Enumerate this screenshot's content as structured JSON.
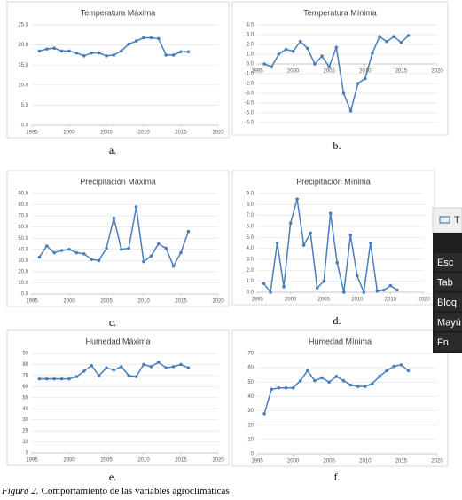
{
  "chart_data": [
    {
      "type": "line",
      "title": "Temperatura Máxima",
      "panel_label": "a.",
      "color": "#4a7ebb",
      "grid": true,
      "x": [
        1996,
        1997,
        1998,
        1999,
        2000,
        2001,
        2002,
        2003,
        2004,
        2005,
        2006,
        2007,
        2008,
        2009,
        2010,
        2011,
        2012,
        2013,
        2014,
        2015,
        2016
      ],
      "values": [
        18.5,
        19,
        19.2,
        18.5,
        18.5,
        18,
        17.3,
        18,
        18,
        17.3,
        17.5,
        18.5,
        20.2,
        21,
        21.8,
        21.8,
        21.6,
        17.5,
        17.5,
        18.3,
        18.3
      ],
      "xlim": [
        1995,
        2020
      ],
      "xticks": [
        1995,
        2000,
        2005,
        2010,
        2015,
        2020
      ],
      "ylim": [
        0,
        25
      ],
      "yticks": [
        {
          "value": 0,
          "label": "0.0"
        },
        {
          "value": 5,
          "label": "5.0"
        },
        {
          "value": 10,
          "label": "10.0"
        },
        {
          "value": 15,
          "label": "15.0"
        },
        {
          "value": 20,
          "label": "20.0"
        },
        {
          "value": 25,
          "label": "25.0"
        }
      ]
    },
    {
      "type": "line",
      "title": "Temperatura Mínima",
      "panel_label": "b.",
      "color": "#4a7ebb",
      "grid": true,
      "x": [
        1996,
        1997,
        1998,
        1999,
        2000,
        2001,
        2002,
        2003,
        2004,
        2005,
        2006,
        2007,
        2008,
        2009,
        2010,
        2011,
        2012,
        2013,
        2014,
        2015,
        2016
      ],
      "values": [
        0,
        -0.3,
        1.0,
        1.5,
        1.3,
        2.3,
        1.6,
        0,
        0.8,
        -0.3,
        1.7,
        -3.0,
        -4.8,
        -2.0,
        -1.5,
        1.1,
        2.8,
        2.3,
        2.8,
        2.2,
        2.9
      ],
      "xlim": [
        1995,
        2020
      ],
      "xticks": [
        1995,
        2000,
        2005,
        2010,
        2015,
        2020
      ],
      "ylim": [
        -6,
        4
      ],
      "yticks": [
        {
          "value": -6,
          "label": "-6.0"
        },
        {
          "value": -5,
          "label": "-5.0"
        },
        {
          "value": -4,
          "label": "-4.0"
        },
        {
          "value": -3,
          "label": "-3.0"
        },
        {
          "value": -2,
          "label": "-2.0"
        },
        {
          "value": -1,
          "label": "-1.0"
        },
        {
          "value": 0,
          "label": "0.0"
        },
        {
          "value": 1,
          "label": "1.0"
        },
        {
          "value": 2,
          "label": "2.0"
        },
        {
          "value": 3,
          "label": "3.0"
        },
        {
          "value": 4,
          "label": "4.0"
        }
      ]
    },
    {
      "type": "line",
      "title": "Precipitación Máxima",
      "panel_label": "c.",
      "color": "#4a7ebb",
      "grid": true,
      "x": [
        1996,
        1997,
        1998,
        1999,
        2000,
        2001,
        2002,
        2003,
        2004,
        2005,
        2006,
        2007,
        2008,
        2009,
        2010,
        2011,
        2012,
        2013,
        2014,
        2015,
        2016
      ],
      "values": [
        33,
        43,
        37,
        39,
        40,
        37,
        36,
        31,
        30,
        41,
        68,
        40,
        41,
        78,
        29,
        34,
        45,
        41,
        25,
        37,
        56
      ],
      "xlim": [
        1995,
        2020
      ],
      "xticks": [
        1995,
        2000,
        2005,
        2010,
        2015,
        2020
      ],
      "ylim": [
        0,
        90
      ],
      "yticks": [
        {
          "value": 0,
          "label": "0.0"
        },
        {
          "value": 10,
          "label": "10.0"
        },
        {
          "value": 20,
          "label": "20.0"
        },
        {
          "value": 30,
          "label": "30.0"
        },
        {
          "value": 40,
          "label": "40.0"
        },
        {
          "value": 50,
          "label": "50.0"
        },
        {
          "value": 60,
          "label": "60.0"
        },
        {
          "value": 70,
          "label": "70.0"
        },
        {
          "value": 80,
          "label": "80.0"
        },
        {
          "value": 90,
          "label": "90.0"
        }
      ]
    },
    {
      "type": "line",
      "title": "Precipitación Mínima",
      "panel_label": "d.",
      "color": "#4a7ebb",
      "grid": true,
      "x": [
        1996,
        1997,
        1998,
        1999,
        2000,
        2001,
        2002,
        2003,
        2004,
        2005,
        2006,
        2007,
        2008,
        2009,
        2010,
        2011,
        2012,
        2013,
        2014,
        2015,
        2016
      ],
      "values": [
        0.8,
        0,
        4.5,
        0.5,
        6.3,
        8.5,
        4.3,
        5.4,
        0.4,
        1.0,
        7.2,
        2.7,
        0,
        5.2,
        1.5,
        0,
        4.5,
        0.1,
        0.2,
        0.6,
        0.2
      ],
      "xlim": [
        1995,
        2020
      ],
      "xticks": [
        1995,
        2000,
        2005,
        2010,
        2015,
        2020
      ],
      "ylim": [
        0,
        9
      ],
      "yticks": [
        {
          "value": 0,
          "label": "0.0"
        },
        {
          "value": 1,
          "label": "1.0"
        },
        {
          "value": 2,
          "label": "2.0"
        },
        {
          "value": 3,
          "label": "3.0"
        },
        {
          "value": 4,
          "label": "4.0"
        },
        {
          "value": 5,
          "label": "5.0"
        },
        {
          "value": 6,
          "label": "6.0"
        },
        {
          "value": 7,
          "label": "7.0"
        },
        {
          "value": 8,
          "label": "8.0"
        },
        {
          "value": 9,
          "label": "9.0"
        }
      ]
    },
    {
      "type": "line",
      "title": "Humedad Máxima",
      "panel_label": "e.",
      "color": "#4a7ebb",
      "grid": true,
      "x": [
        1996,
        1997,
        1998,
        1999,
        2000,
        2001,
        2002,
        2003,
        2004,
        2005,
        2006,
        2007,
        2008,
        2009,
        2010,
        2011,
        2012,
        2013,
        2014,
        2015,
        2016
      ],
      "values": [
        67,
        67,
        67,
        67,
        67,
        69,
        74,
        79,
        70,
        77,
        75,
        78,
        70,
        69,
        80,
        78,
        82,
        77,
        78,
        80,
        77
      ],
      "xlim": [
        1995,
        2020
      ],
      "xticks": [
        1995,
        2000,
        2005,
        2010,
        2015,
        2020
      ],
      "ylim": [
        0,
        90
      ],
      "yticks": [
        0,
        10,
        20,
        30,
        40,
        50,
        60,
        70,
        80,
        90
      ]
    },
    {
      "type": "line",
      "title": "Humedad Mínima",
      "panel_label": "f.",
      "color": "#4a7ebb",
      "grid": true,
      "x": [
        1996,
        1997,
        1998,
        1999,
        2000,
        2001,
        2002,
        2003,
        2004,
        2005,
        2006,
        2007,
        2008,
        2009,
        2010,
        2011,
        2012,
        2013,
        2014,
        2015,
        2016
      ],
      "values": [
        28,
        45,
        46,
        46,
        46,
        51,
        58,
        51,
        53,
        50,
        54,
        51,
        48,
        47,
        47,
        49,
        54,
        58,
        61,
        62,
        58
      ],
      "xlim": [
        1995,
        2020
      ],
      "xticks": [
        1995,
        2000,
        2005,
        2010,
        2015,
        2020
      ],
      "ylim": [
        0,
        70
      ],
      "yticks": [
        0,
        10,
        20,
        30,
        40,
        50,
        60,
        70
      ]
    }
  ],
  "caption": {
    "label": "Figura 2.",
    "text": "Comportamiento de las variables agroclimáticas"
  },
  "keyboard_overlay": {
    "keys": [
      "T",
      "Esc",
      "Tab",
      "Bloq",
      "Mayú",
      "Fn"
    ]
  }
}
